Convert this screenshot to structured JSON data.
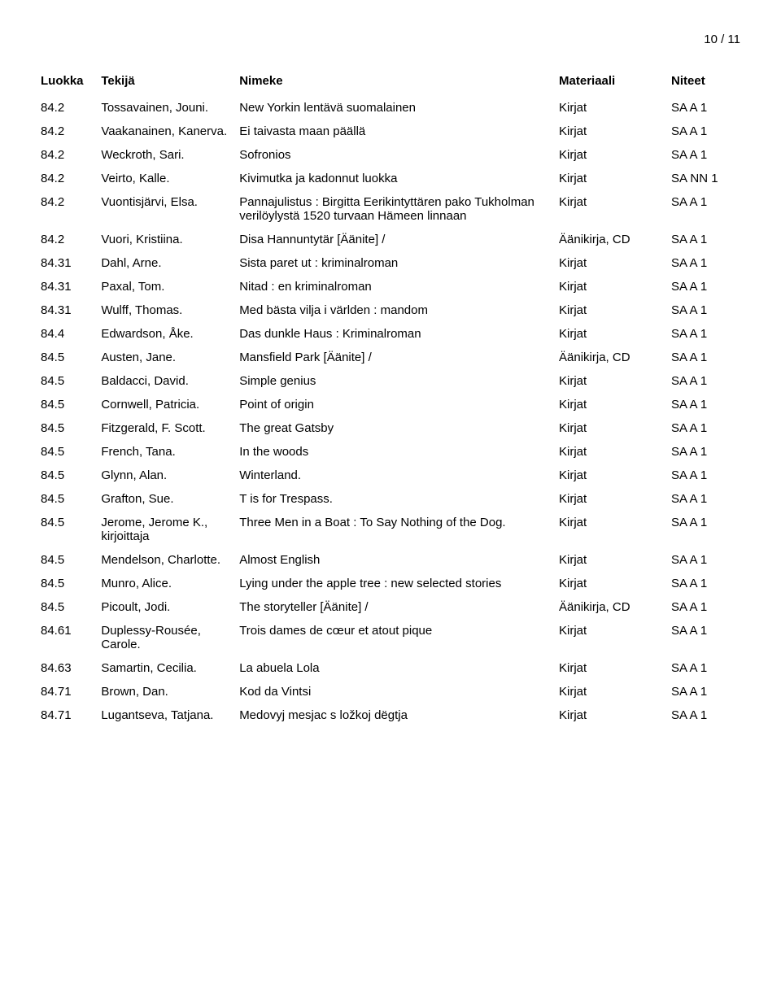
{
  "page_number": "10 / 11",
  "columns": [
    "Luokka",
    "Tekijä",
    "Nimeke",
    "Materiaali",
    "Niteet"
  ],
  "rows": [
    {
      "luokka": "84.2",
      "tekija": "Tossavainen, Jouni.",
      "nimeke": "New Yorkin lentävä suomalainen",
      "materiaali": "Kirjat",
      "niteet": "SA A 1"
    },
    {
      "luokka": "84.2",
      "tekija": "Vaakanainen, Kanerva.",
      "nimeke": "Ei taivasta maan päällä",
      "materiaali": "Kirjat",
      "niteet": "SA A 1"
    },
    {
      "luokka": "84.2",
      "tekija": "Weckroth, Sari.",
      "nimeke": "Sofronios",
      "materiaali": "Kirjat",
      "niteet": "SA A 1"
    },
    {
      "luokka": "84.2",
      "tekija": "Veirto, Kalle.",
      "nimeke": "Kivimutka ja kadonnut luokka",
      "materiaali": "Kirjat",
      "niteet": "SA NN 1"
    },
    {
      "luokka": "84.2",
      "tekija": "Vuontisjärvi, Elsa.",
      "nimeke": "Pannajulistus : Birgitta Eerikintyttären pako Tukholman verilöylystä 1520 turvaan Hämeen linnaan",
      "materiaali": "Kirjat",
      "niteet": "SA A 1"
    },
    {
      "luokka": "84.2",
      "tekija": "Vuori, Kristiina.",
      "nimeke": "Disa Hannuntytär [Äänite] /",
      "materiaali": "Äänikirja, CD",
      "niteet": "SA A 1"
    },
    {
      "luokka": "84.31",
      "tekija": "Dahl, Arne.",
      "nimeke": "Sista paret ut : kriminalroman",
      "materiaali": "Kirjat",
      "niteet": "SA A 1"
    },
    {
      "luokka": "84.31",
      "tekija": "Paxal, Tom.",
      "nimeke": "Nitad : en kriminalroman",
      "materiaali": "Kirjat",
      "niteet": "SA A 1"
    },
    {
      "luokka": "84.31",
      "tekija": "Wulff, Thomas.",
      "nimeke": "Med bästa vilja i världen : mandom",
      "materiaali": "Kirjat",
      "niteet": "SA A 1"
    },
    {
      "luokka": "84.4",
      "tekija": "Edwardson, Åke.",
      "nimeke": "Das dunkle Haus : Kriminalroman",
      "materiaali": "Kirjat",
      "niteet": "SA A 1"
    },
    {
      "luokka": "84.5",
      "tekija": "Austen, Jane.",
      "nimeke": "Mansfield Park [Äänite] /",
      "materiaali": "Äänikirja, CD",
      "niteet": "SA A 1"
    },
    {
      "luokka": "84.5",
      "tekija": "Baldacci, David.",
      "nimeke": "Simple genius",
      "materiaali": "Kirjat",
      "niteet": "SA A 1"
    },
    {
      "luokka": "84.5",
      "tekija": "Cornwell, Patricia.",
      "nimeke": "Point of origin",
      "materiaali": "Kirjat",
      "niteet": "SA A 1"
    },
    {
      "luokka": "84.5",
      "tekija": "Fitzgerald, F. Scott.",
      "nimeke": "The great Gatsby",
      "materiaali": "Kirjat",
      "niteet": "SA A 1"
    },
    {
      "luokka": "84.5",
      "tekija": "French, Tana.",
      "nimeke": "In the woods",
      "materiaali": "Kirjat",
      "niteet": "SA A 1"
    },
    {
      "luokka": "84.5",
      "tekija": "Glynn, Alan.",
      "nimeke": "Winterland.",
      "materiaali": "Kirjat",
      "niteet": "SA A 1"
    },
    {
      "luokka": "84.5",
      "tekija": "Grafton, Sue.",
      "nimeke": "T is for Trespass.",
      "materiaali": "Kirjat",
      "niteet": "SA A 1"
    },
    {
      "luokka": "84.5",
      "tekija": "Jerome, Jerome K., kirjoittaja",
      "nimeke": "Three Men in a Boat : To Say Nothing of the Dog.",
      "materiaali": "Kirjat",
      "niteet": "SA A 1"
    },
    {
      "luokka": "84.5",
      "tekija": "Mendelson, Charlotte.",
      "nimeke": "Almost English",
      "materiaali": "Kirjat",
      "niteet": "SA A 1"
    },
    {
      "luokka": "84.5",
      "tekija": "Munro, Alice.",
      "nimeke": "Lying under the apple tree : new selected stories",
      "materiaali": "Kirjat",
      "niteet": "SA A 1"
    },
    {
      "luokka": "84.5",
      "tekija": "Picoult, Jodi.",
      "nimeke": "The storyteller [Äänite] /",
      "materiaali": "Äänikirja, CD",
      "niteet": "SA A 1"
    },
    {
      "luokka": "84.61",
      "tekija": "Duplessy-Rousée, Carole.",
      "nimeke": "Trois dames de cœur et atout pique",
      "materiaali": "Kirjat",
      "niteet": "SA A 1"
    },
    {
      "luokka": "84.63",
      "tekija": "Samartin, Cecilia.",
      "nimeke": "La abuela Lola",
      "materiaali": "Kirjat",
      "niteet": "SA A 1"
    },
    {
      "luokka": "84.71",
      "tekija": "Brown, Dan.",
      "nimeke": "Kod da Vintsi",
      "materiaali": "Kirjat",
      "niteet": "SA A 1"
    },
    {
      "luokka": "84.71",
      "tekija": "Lugantseva, Tatjana.",
      "nimeke": "Medovyj mesjac s ložkoj dëgtja",
      "materiaali": "Kirjat",
      "niteet": "SA A 1"
    }
  ]
}
